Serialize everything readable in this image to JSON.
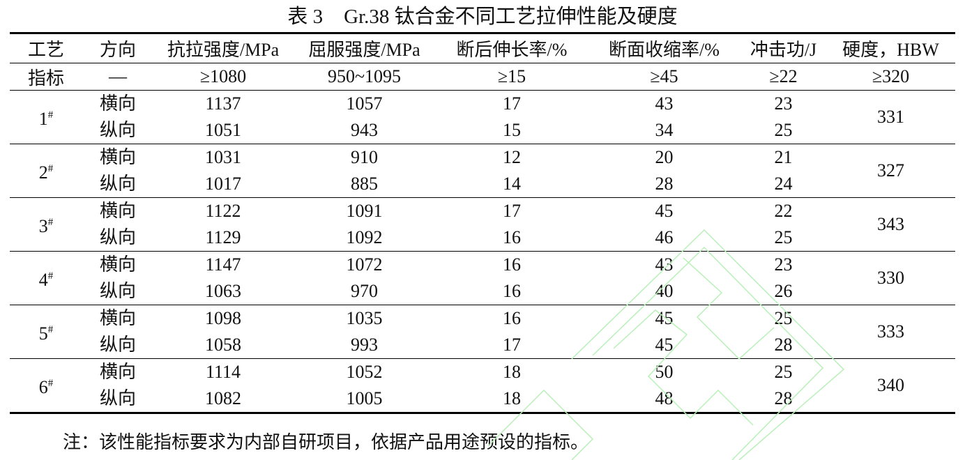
{
  "title": {
    "number": "表 3",
    "text": "Gr.38 钛合金不同工艺拉伸性能及硬度"
  },
  "headers": [
    "工艺",
    "方向",
    "抗拉强度/MPa",
    "屈服强度/MPa",
    "断后伸长率/%",
    "断面收缩率/%",
    "冲击功/J",
    "硬度，HBW"
  ],
  "index_row": [
    "指标",
    "—",
    "≥1080",
    "950~1095",
    "≥15",
    "≥45",
    "≥22",
    "≥320"
  ],
  "groups": [
    {
      "process": "1",
      "mark": "#",
      "hardness": "331",
      "rows": [
        {
          "direction": "横向",
          "values": [
            "1137",
            "1057",
            "17",
            "43",
            "23"
          ]
        },
        {
          "direction": "纵向",
          "values": [
            "1051",
            "943",
            "15",
            "34",
            "25"
          ]
        }
      ]
    },
    {
      "process": "2",
      "mark": "#",
      "hardness": "327",
      "rows": [
        {
          "direction": "横向",
          "values": [
            "1031",
            "910",
            "12",
            "20",
            "21"
          ]
        },
        {
          "direction": "纵向",
          "values": [
            "1017",
            "885",
            "14",
            "28",
            "24"
          ]
        }
      ]
    },
    {
      "process": "3",
      "mark": "#",
      "hardness": "343",
      "rows": [
        {
          "direction": "横向",
          "values": [
            "1122",
            "1091",
            "17",
            "45",
            "22"
          ]
        },
        {
          "direction": "纵向",
          "values": [
            "1129",
            "1092",
            "16",
            "46",
            "25"
          ]
        }
      ]
    },
    {
      "process": "4",
      "mark": "#",
      "hardness": "330",
      "rows": [
        {
          "direction": "横向",
          "values": [
            "1147",
            "1072",
            "16",
            "43",
            "23"
          ]
        },
        {
          "direction": "纵向",
          "values": [
            "1063",
            "970",
            "16",
            "40",
            "26"
          ]
        }
      ]
    },
    {
      "process": "5",
      "mark": "#",
      "hardness": "333",
      "rows": [
        {
          "direction": "横向",
          "values": [
            "1098",
            "1035",
            "16",
            "45",
            "25"
          ]
        },
        {
          "direction": "纵向",
          "values": [
            "1058",
            "993",
            "17",
            "45",
            "28"
          ]
        }
      ]
    },
    {
      "process": "6",
      "mark": "#",
      "hardness": "340",
      "rows": [
        {
          "direction": "横向",
          "values": [
            "1114",
            "1052",
            "18",
            "50",
            "25"
          ]
        },
        {
          "direction": "纵向",
          "values": [
            "1082",
            "1005",
            "18",
            "48",
            "28"
          ]
        }
      ]
    }
  ],
  "note": "注：该性能指标要求为内部自研项目，依据产品用途预设的指标。",
  "watermark_color": "#b8f0b8"
}
